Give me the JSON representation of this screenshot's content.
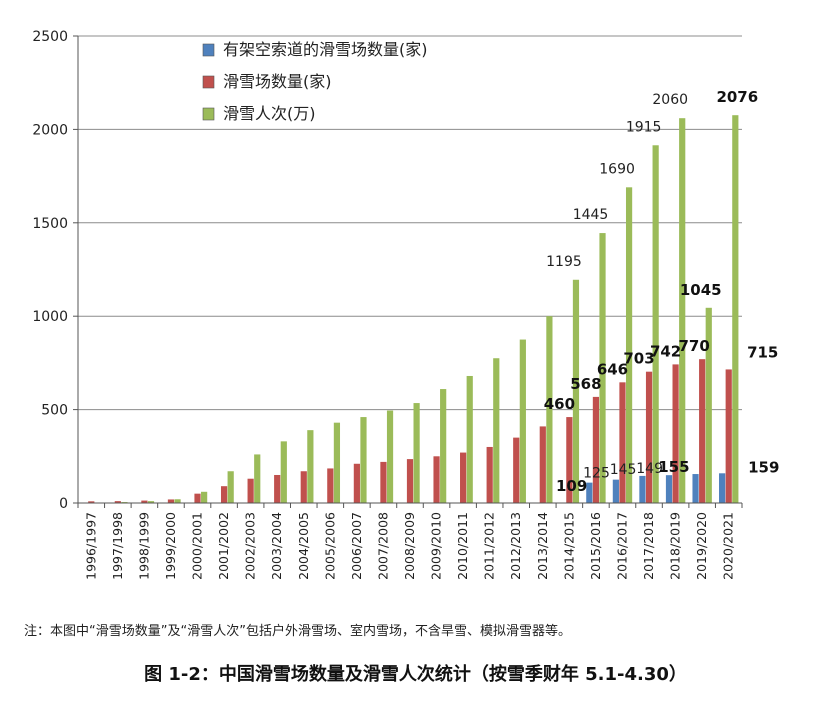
{
  "chart_data": {
    "type": "bar",
    "categories": [
      "1996/1997",
      "1997/1998",
      "1998/1999",
      "1999/2000",
      "2000/2001",
      "2001/2002",
      "2002/2003",
      "2003/2004",
      "2004/2005",
      "2005/2006",
      "2006/2007",
      "2007/2008",
      "2008/2009",
      "2009/2010",
      "2010/2011",
      "2011/2012",
      "2012/2013",
      "2013/2014",
      "2014/2015",
      "2015/2016",
      "2016/2017",
      "2017/2018",
      "2018/2019",
      "2019/2020",
      "2020/2021"
    ],
    "series": [
      {
        "name": "有架空索道的滑雪场数量(家)",
        "color": "#4f81bd",
        "values": [
          0,
          0,
          0,
          0,
          0,
          0,
          0,
          0,
          0,
          0,
          0,
          0,
          0,
          0,
          0,
          0,
          0,
          0,
          0,
          109,
          125,
          145,
          149,
          155,
          159
        ],
        "labels": [
          "",
          "",
          "",
          "",
          "",
          "",
          "",
          "",
          "",
          "",
          "",
          "",
          "",
          "",
          "",
          "",
          "",
          "",
          "",
          "109",
          "125",
          "145",
          "149",
          "155",
          "159"
        ],
        "bold": [
          false,
          false,
          false,
          false,
          false,
          false,
          false,
          false,
          false,
          false,
          false,
          false,
          false,
          false,
          false,
          false,
          false,
          false,
          false,
          true,
          false,
          false,
          false,
          true,
          true
        ]
      },
      {
        "name": "滑雪场数量(家)",
        "color": "#c0504d",
        "values": [
          9,
          10,
          13,
          19,
          50,
          90,
          130,
          150,
          170,
          185,
          210,
          220,
          235,
          250,
          270,
          300,
          350,
          410,
          460,
          568,
          646,
          703,
          742,
          770,
          715
        ],
        "labels": [
          "",
          "",
          "",
          "",
          "",
          "",
          "",
          "",
          "",
          "",
          "",
          "",
          "",
          "",
          "",
          "",
          "",
          "",
          "460",
          "568",
          "646",
          "703",
          "742",
          "770",
          "715"
        ],
        "bold": [
          false,
          false,
          false,
          false,
          false,
          false,
          false,
          false,
          false,
          false,
          false,
          false,
          false,
          false,
          false,
          false,
          false,
          false,
          true,
          true,
          true,
          true,
          true,
          true,
          true
        ]
      },
      {
        "name": "滑雪人次(万)",
        "color": "#9bbb59",
        "values": [
          1,
          5,
          10,
          20,
          60,
          170,
          260,
          330,
          390,
          430,
          460,
          495,
          535,
          610,
          680,
          775,
          875,
          1000,
          1195,
          1445,
          1690,
          1915,
          2060,
          1045,
          2076
        ],
        "labels": [
          "",
          "",
          "",
          "",
          "",
          "",
          "",
          "",
          "",
          "",
          "",
          "",
          "",
          "",
          "",
          "",
          "",
          "",
          "1195",
          "1445",
          "1690",
          "1915",
          "2060",
          "1045",
          "2076"
        ],
        "bold": [
          false,
          false,
          false,
          false,
          false,
          false,
          false,
          false,
          false,
          false,
          false,
          false,
          false,
          false,
          false,
          false,
          false,
          false,
          false,
          false,
          false,
          false,
          false,
          true,
          true
        ]
      }
    ],
    "ylim": [
      0,
      2500
    ],
    "yticks": [
      0,
      500,
      1000,
      1500,
      2000,
      2500
    ],
    "grid": true,
    "legend_position": "top-left"
  },
  "note": "注：本图中“滑雪场数量”及“滑雪人次”包括户外滑雪场、室内雪场，不含旱雪、模拟滑雪器等。",
  "caption": "图 1-2：中国滑雪场数量及滑雪人次统计（按雪季财年 5.1-4.30）"
}
